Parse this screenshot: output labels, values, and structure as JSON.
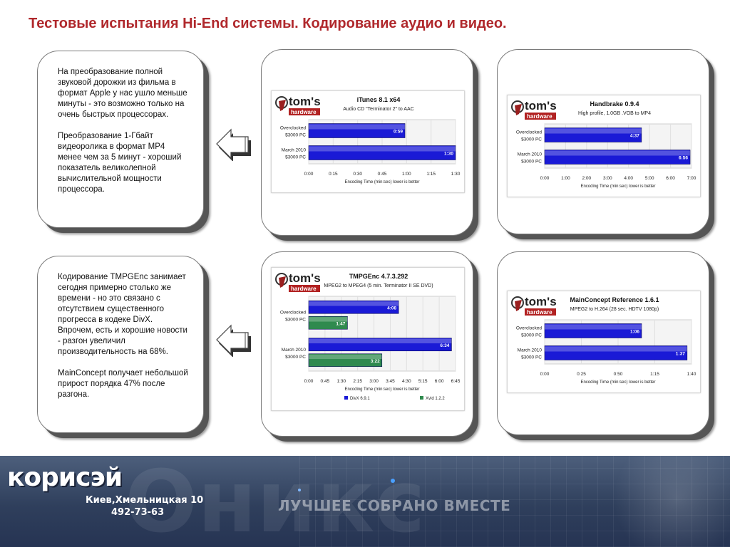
{
  "slide": {
    "title": "Тестовые испытания Hi-End системы. Кодирование аудио и видео."
  },
  "left_panels": [
    {
      "paragraphs": [
        "На преобразование полной звуковой дорожки из фильма в формат Apple у нас ушло меньше минуты - это возможно только на очень быстрых процессорах.",
        "Преобразование 1-Гбайт видеоролика в формат MP4 менее чем за 5 минут - хороший показатель великолепной вычислительной мощности процессора."
      ]
    },
    {
      "paragraphs": [
        "Кодирование TMPGEnc занимает сегодня примерно столько же времени - но это связано с отсутствием существенного прогресса в кодеке DivX. Впрочем, есть и хорошие новости - разгон увеличил производительность на 68%.",
        "MainConcept получает небольшой прирост порядка 47% после разгона."
      ]
    }
  ],
  "chart_data": [
    {
      "type": "bar",
      "logo": [
        "tom's",
        "hardware"
      ],
      "title": "iTunes 8.1 x64",
      "subtitle": "Audio CD \"Terminator 2\" to AAC",
      "categories": [
        [
          "Overclocked",
          "$3000 PC"
        ],
        [
          "March 2010",
          "$3000 PC"
        ]
      ],
      "series": [
        {
          "color": "#1a1ad6",
          "values": [
            59,
            90
          ],
          "labels": [
            "0:59",
            "1:30"
          ]
        }
      ],
      "xlim": [
        0,
        90
      ],
      "ticks": [
        "0:00",
        "0:15",
        "0:30",
        "0:45",
        "1:00",
        "1:15",
        "1:30"
      ],
      "xlabel": "Encoding Time (min:sec) lower is better",
      "legend": []
    },
    {
      "type": "bar",
      "logo": [
        "tom's",
        "hardware"
      ],
      "title": "Handbrake 0.9.4",
      "subtitle": "High profile, 1.0GB .VOB to MP4",
      "categories": [
        [
          "Overclocked",
          "$3000 PC"
        ],
        [
          "March 2010",
          "$3000 PC"
        ]
      ],
      "series": [
        {
          "color": "#1a1ad6",
          "values": [
            277,
            416
          ],
          "labels": [
            "4:37",
            "6:56"
          ]
        }
      ],
      "xlim": [
        0,
        420
      ],
      "ticks": [
        "0:00",
        "1:00",
        "2:00",
        "3:00",
        "4:00",
        "5:00",
        "6:00",
        "7:00"
      ],
      "xlabel": "Encoding Time (min:sec) lower is better",
      "legend": []
    },
    {
      "type": "bar",
      "logo": [
        "tom's",
        "hardware"
      ],
      "title": "TMPGEnc 4.7.3.292",
      "subtitle": "MPEG2 to MPEG4 (5 min. Terminator II SE DVD)",
      "categories": [
        [
          "Overclocked",
          "$3000 PC"
        ],
        [
          "March 2010",
          "$3000 PC"
        ]
      ],
      "series": [
        {
          "name": "DivX 6.9.1",
          "color": "#1a1ad6",
          "values": [
            248,
            394
          ],
          "labels": [
            "4:08",
            "6:34"
          ]
        },
        {
          "name": "Xvid 1.2.2",
          "color": "#2f8a4e",
          "values": [
            107,
            202
          ],
          "labels": [
            "1:47",
            "3:22"
          ]
        }
      ],
      "xlim": [
        0,
        405
      ],
      "ticks": [
        "0:00",
        "0:45",
        "1:30",
        "2:15",
        "3:00",
        "3:45",
        "4:30",
        "5:15",
        "6:00",
        "6:45"
      ],
      "xlabel": "Encoding Time (min:sec) lower is better",
      "legend": [
        "DivX 6.9.1",
        "Xvid 1.2.2"
      ]
    },
    {
      "type": "bar",
      "logo": [
        "tom's",
        "hardware"
      ],
      "title": "MainConcept Reference 1.6.1",
      "subtitle": "MPEG2 to H.264 (28 sec. HDTV 1080p)",
      "categories": [
        [
          "Overclocked",
          "$3000 PC"
        ],
        [
          "March 2010",
          "$3000 PC"
        ]
      ],
      "series": [
        {
          "color": "#1a1ad6",
          "values": [
            66,
            97
          ],
          "labels": [
            "1:06",
            "1:37"
          ]
        }
      ],
      "xlim": [
        0,
        100
      ],
      "ticks": [
        "0:00",
        "0:25",
        "0:50",
        "1:15",
        "1:40"
      ],
      "xlabel": "Encoding Time (min:sec) lower is better",
      "legend": []
    }
  ],
  "footer": {
    "logo": "корисэй",
    "watermark": "Оникс",
    "address": "Киев,Хмельницкая 10",
    "phone": "492-73-63",
    "slogan": "ЛУЧШЕЕ СОБРАНО ВМЕСТЕ"
  }
}
